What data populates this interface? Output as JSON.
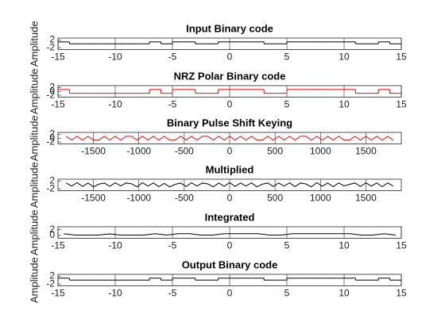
{
  "chart_data": [
    {
      "type": "step",
      "title": "Input Binary code",
      "ylabel": "Amplitude",
      "color": "#000000",
      "x": [
        -15,
        -14,
        -13,
        -12,
        -11,
        -10,
        -9,
        -8,
        -7,
        -6,
        -5,
        -4,
        -3,
        -2,
        -1,
        0,
        1,
        2,
        3,
        4,
        5,
        6,
        7,
        8,
        9,
        10,
        11,
        12,
        13,
        14
      ],
      "values": [
        1,
        0,
        0,
        0,
        0,
        0,
        0,
        0,
        1,
        0,
        1,
        1,
        0,
        0,
        1,
        1,
        1,
        1,
        0,
        0,
        1,
        1,
        1,
        1,
        1,
        1,
        0,
        0,
        1,
        0
      ],
      "xlim": [
        -15,
        15
      ],
      "ylim": [
        -3,
        3
      ],
      "xticks": [
        -15,
        -10,
        -5,
        0,
        5,
        10,
        15
      ],
      "yticks": [
        -2,
        2
      ]
    },
    {
      "type": "step",
      "title": "NRZ Polar Binary code",
      "ylabel": "Amplitude",
      "color": "#ff0000",
      "x": [
        -15,
        -14,
        -13,
        -12,
        -11,
        -10,
        -9,
        -8,
        -7,
        -6,
        -5,
        -4,
        -3,
        -2,
        -1,
        0,
        1,
        2,
        3,
        4,
        5,
        6,
        7,
        8,
        9,
        10,
        11,
        12,
        13,
        14
      ],
      "values": [
        1,
        -1,
        -1,
        -1,
        -1,
        -1,
        -1,
        -1,
        1,
        -1,
        1,
        1,
        -1,
        -1,
        1,
        1,
        1,
        1,
        -1,
        -1,
        1,
        1,
        1,
        1,
        1,
        1,
        -1,
        -1,
        1,
        -1
      ],
      "xlim": [
        -15,
        15
      ],
      "ylim": [
        -3,
        3
      ],
      "xticks": [
        -15,
        -10,
        -5,
        0,
        5,
        10,
        15
      ],
      "yticks": [
        -2,
        0,
        2
      ]
    },
    {
      "type": "line",
      "title": "Binary Pulse Shift Keying",
      "ylabel": "Amplitude",
      "color": "#ff0000",
      "x": [
        -1800,
        -1740,
        -1680,
        -1620,
        -1560,
        -1500,
        -1440,
        -1380,
        -1320,
        -1260,
        -1200,
        -1140,
        -1080,
        -1020,
        -960,
        -900,
        -840,
        -780,
        -720,
        -660,
        -600,
        -540,
        -480,
        -420,
        -360,
        -300,
        -240,
        -180,
        -120,
        -60,
        0,
        60,
        120,
        180,
        240,
        300,
        360,
        420,
        480,
        540,
        600,
        660,
        720,
        780,
        840,
        900,
        960,
        1020,
        1080,
        1140,
        1200,
        1260,
        1320,
        1380,
        1440,
        1500,
        1560,
        1620,
        1680,
        1740,
        1800
      ],
      "values": [
        1,
        -1,
        1,
        -1,
        1,
        -1,
        -1,
        1,
        -1,
        1,
        -1,
        1,
        1,
        -1,
        1,
        -1,
        1,
        -1,
        1,
        -1,
        -1,
        1,
        -1,
        1,
        -1,
        1,
        1,
        -1,
        1,
        -1,
        1,
        -1,
        1,
        -1,
        1,
        -1,
        -1,
        1,
        -1,
        1,
        -1,
        1,
        -1,
        1,
        1,
        -1,
        1,
        -1,
        1,
        -1,
        1,
        -1,
        -1,
        1,
        -1,
        1,
        -1,
        1,
        -1,
        1,
        -1
      ],
      "xlim": [
        -1890,
        1890
      ],
      "ylim": [
        -3,
        3
      ],
      "xticks": [
        -1500,
        -1000,
        -500,
        0,
        500,
        1000,
        1500
      ],
      "yticks": [
        -2,
        0,
        2
      ]
    },
    {
      "type": "line",
      "title": "Multiplied",
      "ylabel": "Amplitude",
      "color": "#000000",
      "x": [
        -1800,
        -1740,
        -1680,
        -1620,
        -1560,
        -1500,
        -1440,
        -1380,
        -1320,
        -1260,
        -1200,
        -1140,
        -1080,
        -1020,
        -960,
        -900,
        -840,
        -780,
        -720,
        -660,
        -600,
        -540,
        -480,
        -420,
        -360,
        -300,
        -240,
        -180,
        -120,
        -60,
        0,
        60,
        120,
        180,
        240,
        300,
        360,
        420,
        480,
        540,
        600,
        660,
        720,
        780,
        840,
        900,
        960,
        1020,
        1080,
        1140,
        1200,
        1260,
        1320,
        1380,
        1440,
        1500,
        1560,
        1620,
        1680,
        1740,
        1800
      ],
      "values": [
        1,
        -0.6,
        1.2,
        -0.8,
        1,
        -1,
        0.4,
        1,
        -0.7,
        1.1,
        -0.5,
        1,
        0.6,
        -1,
        1.2,
        -0.6,
        1,
        -0.9,
        0.8,
        -1,
        0.3,
        1,
        -0.8,
        1.1,
        -0.6,
        1,
        0.5,
        -1,
        1,
        -0.7,
        1.2,
        -0.8,
        1,
        -0.6,
        1.1,
        -1,
        0.4,
        1,
        -0.8,
        1,
        -0.6,
        1.1,
        -0.9,
        1,
        0.5,
        -1,
        1.2,
        -0.7,
        1,
        -0.9,
        1,
        -0.5,
        0.3,
        1,
        -0.8,
        1.1,
        -0.6,
        1,
        -0.9,
        1,
        -0.6
      ],
      "xlim": [
        -1890,
        1890
      ],
      "ylim": [
        -3,
        3
      ],
      "xticks": [
        -1500,
        -1000,
        -500,
        0,
        500,
        1000,
        1500
      ],
      "yticks": [
        -2,
        2
      ]
    },
    {
      "type": "line",
      "title": "Integrated",
      "ylabel": "Amplitude",
      "color": "#000000",
      "x": [
        -14.5,
        -13.5,
        -12.5,
        -11.5,
        -10.5,
        -9.5,
        -8.5,
        -7.5,
        -6.5,
        -5.5,
        -4.5,
        -3.5,
        -2.5,
        -1.5,
        -0.5,
        0.5,
        1.5,
        2.5,
        3.5,
        4.5,
        5.5,
        6.5,
        7.5,
        8.5,
        9.5,
        10.5,
        11.5,
        12.5,
        13.5,
        14.5
      ],
      "values": [
        0.6,
        0.1,
        0.1,
        0.1,
        0.5,
        0.1,
        0.1,
        0.1,
        0.6,
        0.1,
        0.6,
        0.6,
        0.1,
        0.1,
        0.6,
        0.6,
        0.6,
        0.6,
        0.1,
        0.1,
        0.6,
        0.6,
        0.6,
        0.6,
        0.6,
        0.6,
        0.1,
        0.1,
        0.6,
        0.1
      ],
      "xlim": [
        -15,
        15
      ],
      "ylim": [
        -1,
        3
      ],
      "xticks": [
        -15,
        -10,
        -5,
        0,
        5,
        10,
        15
      ],
      "yticks": [
        0,
        2
      ]
    },
    {
      "type": "step",
      "title": "Output Binary code",
      "ylabel": "Amplitude",
      "color": "#000000",
      "x": [
        -15,
        -14,
        -13,
        -12,
        -11,
        -10,
        -9,
        -8,
        -7,
        -6,
        -5,
        -4,
        -3,
        -2,
        -1,
        0,
        1,
        2,
        3,
        4,
        5,
        6,
        7,
        8,
        9,
        10,
        11,
        12,
        13,
        14
      ],
      "values": [
        1,
        0,
        0,
        0,
        0,
        0,
        0,
        0,
        1,
        0,
        1,
        1,
        0,
        0,
        1,
        1,
        1,
        1,
        0,
        0,
        1,
        1,
        1,
        1,
        1,
        1,
        0,
        0,
        1,
        0
      ],
      "xlim": [
        -15,
        15
      ],
      "ylim": [
        -3,
        3
      ],
      "xticks": [
        -15,
        -10,
        -5,
        0,
        5,
        10,
        15
      ],
      "yticks": [
        -2,
        2
      ]
    }
  ]
}
